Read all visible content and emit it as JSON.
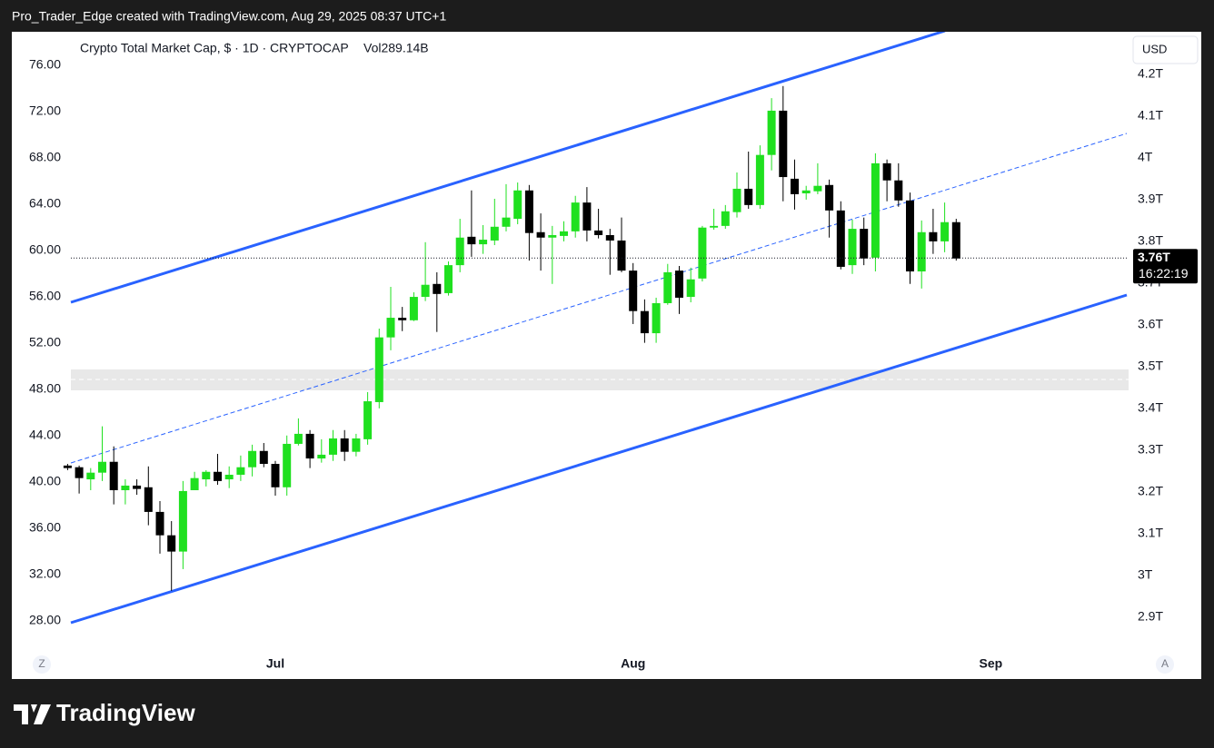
{
  "header": "Pro_Trader_Edge created with TradingView.com, Aug 29, 2025 08:37 UTC+1",
  "logo": "TradingView",
  "buttons": {
    "left": "Z",
    "right": "A"
  },
  "chart_data": {
    "type": "candlestick",
    "legend": "Crypto Total Market Cap, $ · 1D · CRYPTOCAP",
    "volume": "Vol289.14B",
    "currency": "USD",
    "up_color": "#1fe01f",
    "down_color": "#000000",
    "categories": [
      null,
      null,
      null,
      null,
      null,
      null,
      null,
      null,
      null,
      null,
      null,
      null,
      null,
      null,
      null,
      null,
      null,
      null,
      "Jul",
      null,
      null,
      null,
      null,
      null,
      null,
      null,
      null,
      null,
      null,
      null,
      null,
      null,
      null,
      null,
      null,
      null,
      null,
      null,
      null,
      null,
      null,
      null,
      null,
      null,
      null,
      null,
      null,
      null,
      null,
      "Aug",
      null,
      null,
      null,
      null,
      null,
      null,
      null,
      null,
      null,
      null,
      null,
      null,
      null,
      null,
      null,
      null,
      null,
      null,
      null,
      null,
      null,
      null,
      null,
      null,
      null,
      null,
      null,
      null,
      null,
      null,
      "Sep",
      null,
      null,
      null,
      null,
      null,
      null,
      null,
      null,
      null,
      null,
      null
    ],
    "open": [
      3.263,
      3.259,
      3.23,
      3.246,
      3.272,
      3.204,
      3.215,
      3.211,
      3.152,
      3.096,
      3.057,
      3.204,
      3.23,
      3.248,
      3.23,
      3.241,
      3.259,
      3.298,
      3.267,
      3.211,
      3.315,
      3.339,
      3.28,
      3.289,
      3.328,
      3.296,
      3.326,
      3.415,
      3.57,
      3.617,
      3.611,
      3.667,
      3.698,
      3.676,
      3.743,
      3.811,
      3.793,
      3.802,
      3.835,
      3.854,
      3.922,
      3.822,
      3.809,
      3.813,
      3.824,
      3.893,
      3.826,
      3.815,
      3.802,
      3.73,
      3.633,
      3.58,
      3.652,
      3.73,
      3.667,
      3.711,
      3.833,
      3.837,
      3.87,
      3.926,
      3.887,
      4.007,
      4.113,
      3.95,
      3.915,
      3.92,
      3.935,
      3.874,
      3.743,
      3.83,
      3.761,
      3.987,
      3.946,
      3.898,
      3.728,
      3.822,
      3.8,
      3.846,
      null,
      null,
      null,
      null,
      null,
      null,
      null,
      null,
      null,
      null,
      null,
      null,
      null,
      null
    ],
    "high": [
      3.267,
      3.263,
      3.257,
      3.357,
      3.309,
      3.23,
      3.23,
      3.261,
      3.178,
      3.13,
      3.226,
      3.248,
      3.252,
      3.291,
      3.261,
      3.287,
      3.313,
      3.317,
      3.274,
      3.335,
      3.376,
      3.348,
      3.326,
      3.348,
      3.348,
      3.339,
      3.439,
      3.591,
      3.691,
      3.643,
      3.678,
      3.798,
      3.726,
      3.752,
      3.854,
      3.922,
      3.839,
      3.902,
      3.937,
      3.941,
      3.935,
      3.867,
      3.837,
      3.848,
      3.909,
      3.93,
      3.878,
      3.83,
      3.857,
      3.748,
      3.661,
      3.665,
      3.746,
      3.741,
      3.737,
      3.837,
      3.878,
      3.887,
      3.965,
      4.015,
      4.03,
      4.143,
      4.172,
      3.996,
      3.933,
      3.987,
      3.948,
      3.896,
      3.852,
      3.857,
      4.011,
      3.996,
      3.987,
      3.917,
      3.85,
      3.878,
      3.893,
      3.854,
      null,
      null,
      null,
      null,
      null,
      null,
      null,
      null,
      null,
      null,
      null,
      null,
      null,
      null
    ],
    "low": [
      3.252,
      3.196,
      3.204,
      3.226,
      3.17,
      3.17,
      3.193,
      3.12,
      3.052,
      2.963,
      3.015,
      3.204,
      3.213,
      3.217,
      3.209,
      3.226,
      3.237,
      3.259,
      3.191,
      3.191,
      3.311,
      3.257,
      3.27,
      3.274,
      3.274,
      3.285,
      3.313,
      3.4,
      3.539,
      3.585,
      3.609,
      3.657,
      3.583,
      3.67,
      3.726,
      3.763,
      3.77,
      3.791,
      3.824,
      3.841,
      3.754,
      3.73,
      3.698,
      3.8,
      3.809,
      3.8,
      3.807,
      3.72,
      3.726,
      3.602,
      3.557,
      3.557,
      3.648,
      3.626,
      3.654,
      3.704,
      3.828,
      3.83,
      3.857,
      3.878,
      3.878,
      3.97,
      3.896,
      3.876,
      3.9,
      3.913,
      3.809,
      3.733,
      3.722,
      3.743,
      3.728,
      3.896,
      3.883,
      3.698,
      3.687,
      3.77,
      3.774,
      3.754,
      null,
      null,
      null,
      null,
      null,
      null,
      null,
      null,
      null,
      null,
      null,
      null,
      null,
      null
    ],
    "close": [
      3.257,
      3.233,
      3.246,
      3.272,
      3.204,
      3.215,
      3.207,
      3.152,
      3.096,
      3.057,
      3.202,
      3.233,
      3.248,
      3.226,
      3.241,
      3.259,
      3.298,
      3.267,
      3.211,
      3.315,
      3.339,
      3.28,
      3.289,
      3.328,
      3.296,
      3.328,
      3.417,
      3.57,
      3.617,
      3.611,
      3.667,
      3.696,
      3.674,
      3.743,
      3.809,
      3.793,
      3.804,
      3.835,
      3.857,
      3.922,
      3.82,
      3.809,
      3.815,
      3.824,
      3.893,
      3.826,
      3.815,
      3.802,
      3.73,
      3.633,
      3.58,
      3.652,
      3.726,
      3.665,
      3.709,
      3.833,
      3.837,
      3.872,
      3.926,
      3.887,
      4.007,
      4.113,
      3.954,
      3.913,
      3.922,
      3.933,
      3.874,
      3.739,
      3.83,
      3.759,
      3.987,
      3.946,
      3.898,
      3.728,
      3.822,
      3.8,
      3.846,
      3.759,
      null,
      null,
      null,
      null,
      null,
      null,
      null,
      null,
      null,
      null,
      null,
      null,
      null,
      null
    ],
    "ylim": [
      2.817,
      4.302
    ],
    "yticks": [
      {
        "value": 4.2,
        "label": "4.2T"
      },
      {
        "value": 4.1,
        "label": "4.1T"
      },
      {
        "value": 4,
        "label": "4T"
      },
      {
        "value": 3.9,
        "label": "3.9T"
      },
      {
        "value": 3.8,
        "label": "3.8T"
      },
      {
        "value": 3.7,
        "label": "3.7T"
      },
      {
        "value": 3.6,
        "label": "3.6T"
      },
      {
        "value": 3.5,
        "label": "3.5T"
      },
      {
        "value": 3.4,
        "label": "3.4T"
      },
      {
        "value": 3.3,
        "label": "3.3T"
      },
      {
        "value": 3.2,
        "label": "3.2T"
      },
      {
        "value": 3.1,
        "label": "3.1T"
      },
      {
        "value": 3,
        "label": "3T"
      },
      {
        "value": 2.9,
        "label": "2.9T"
      }
    ],
    "y2lim": [
      25.33,
      78.9
    ],
    "y2ticks": [
      {
        "value": 76,
        "label": "76.00"
      },
      {
        "value": 72,
        "label": "72.00"
      },
      {
        "value": 68,
        "label": "68.00"
      },
      {
        "value": 64,
        "label": "64.00"
      },
      {
        "value": 60,
        "label": "60.00"
      },
      {
        "value": 56,
        "label": "56.00"
      },
      {
        "value": 52,
        "label": "52.00"
      },
      {
        "value": 48,
        "label": "48.00"
      },
      {
        "value": 44,
        "label": "44.00"
      },
      {
        "value": 40,
        "label": "40.00"
      },
      {
        "value": 36,
        "label": "36.00"
      },
      {
        "value": 32,
        "label": "32.00"
      },
      {
        "value": 28,
        "label": "28.00"
      }
    ],
    "last_price": {
      "value": 3.76,
      "label": "3.76T"
    },
    "countdown": "16:22:19"
  }
}
